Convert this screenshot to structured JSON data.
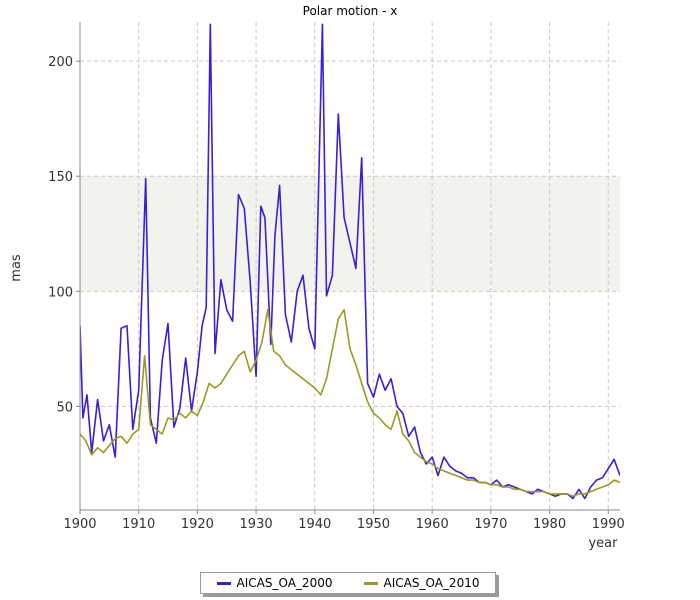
{
  "chart_data": {
    "type": "line",
    "title": "Polar motion - x",
    "xlabel": "year",
    "ylabel": "mas",
    "xlim": [
      1900,
      1992
    ],
    "ylim": [
      5,
      217
    ],
    "x_ticks": [
      1900,
      1910,
      1920,
      1930,
      1940,
      1950,
      1960,
      1970,
      1980,
      1990
    ],
    "y_ticks": [
      50,
      100,
      150,
      200
    ],
    "grid": true,
    "shaded_band": [
      100,
      150
    ],
    "legend_position": "bottom-center",
    "series": [
      {
        "name": "AICAS_OA_2000",
        "color": "#3b1fd6",
        "points": [
          [
            1900,
            85
          ],
          [
            1900.5,
            45
          ],
          [
            1901.2,
            55
          ],
          [
            1902,
            30
          ],
          [
            1903,
            53
          ],
          [
            1904,
            35
          ],
          [
            1905,
            42
          ],
          [
            1906,
            28
          ],
          [
            1907,
            84
          ],
          [
            1908,
            85
          ],
          [
            1909,
            40
          ],
          [
            1910,
            57
          ],
          [
            1911.2,
            149
          ],
          [
            1912,
            45
          ],
          [
            1913,
            34
          ],
          [
            1914,
            70
          ],
          [
            1915,
            86
          ],
          [
            1916,
            41
          ],
          [
            1917,
            49
          ],
          [
            1918,
            71
          ],
          [
            1919,
            48
          ],
          [
            1920,
            65
          ],
          [
            1920.8,
            85
          ],
          [
            1921.5,
            93
          ],
          [
            1922.2,
            216
          ],
          [
            1923,
            73
          ],
          [
            1924,
            105
          ],
          [
            1925,
            92
          ],
          [
            1926,
            87
          ],
          [
            1927,
            142
          ],
          [
            1928,
            136
          ],
          [
            1929,
            104
          ],
          [
            1930,
            63
          ],
          [
            1930.8,
            137
          ],
          [
            1931.5,
            132
          ],
          [
            1932.5,
            77
          ],
          [
            1933.2,
            124
          ],
          [
            1934,
            146
          ],
          [
            1935,
            90
          ],
          [
            1936,
            78
          ],
          [
            1937,
            100
          ],
          [
            1938,
            107
          ],
          [
            1939,
            84
          ],
          [
            1940,
            75
          ],
          [
            1941.3,
            216
          ],
          [
            1942,
            98
          ],
          [
            1943,
            107
          ],
          [
            1944,
            177
          ],
          [
            1945,
            132
          ],
          [
            1946,
            121
          ],
          [
            1947,
            110
          ],
          [
            1948,
            158
          ],
          [
            1949,
            60
          ],
          [
            1950,
            54
          ],
          [
            1951,
            64
          ],
          [
            1952,
            57
          ],
          [
            1953,
            62
          ],
          [
            1954,
            50
          ],
          [
            1955,
            47
          ],
          [
            1956,
            37
          ],
          [
            1957,
            41
          ],
          [
            1958,
            30
          ],
          [
            1959,
            25
          ],
          [
            1960,
            28
          ],
          [
            1961,
            20
          ],
          [
            1962,
            28
          ],
          [
            1963,
            24
          ],
          [
            1964,
            22
          ],
          [
            1965,
            21
          ],
          [
            1966,
            19
          ],
          [
            1967,
            19
          ],
          [
            1968,
            17
          ],
          [
            1969,
            17
          ],
          [
            1970,
            16
          ],
          [
            1971,
            18
          ],
          [
            1972,
            15
          ],
          [
            1973,
            16
          ],
          [
            1974,
            15
          ],
          [
            1975,
            14
          ],
          [
            1976,
            13
          ],
          [
            1977,
            12
          ],
          [
            1978,
            14
          ],
          [
            1979,
            13
          ],
          [
            1980,
            12
          ],
          [
            1981,
            11
          ],
          [
            1982,
            12
          ],
          [
            1983,
            12
          ],
          [
            1984,
            10
          ],
          [
            1985,
            14
          ],
          [
            1986,
            10
          ],
          [
            1987,
            15
          ],
          [
            1988,
            18
          ],
          [
            1989,
            19
          ],
          [
            1990,
            23
          ],
          [
            1991,
            27
          ],
          [
            1992,
            20
          ]
        ]
      },
      {
        "name": "AICAS_OA_2010",
        "color": "#9a9a23",
        "points": [
          [
            1900,
            38
          ],
          [
            1901,
            35
          ],
          [
            1902,
            29
          ],
          [
            1903,
            32
          ],
          [
            1904,
            30
          ],
          [
            1905,
            33
          ],
          [
            1906,
            36
          ],
          [
            1907,
            37
          ],
          [
            1908,
            34
          ],
          [
            1909,
            38
          ],
          [
            1910,
            40
          ],
          [
            1911,
            72
          ],
          [
            1912,
            42
          ],
          [
            1913,
            40
          ],
          [
            1914,
            38
          ],
          [
            1915,
            45
          ],
          [
            1916,
            44
          ],
          [
            1917,
            47
          ],
          [
            1918,
            45
          ],
          [
            1919,
            48
          ],
          [
            1920,
            46
          ],
          [
            1921,
            52
          ],
          [
            1922,
            60
          ],
          [
            1923,
            58
          ],
          [
            1924,
            60
          ],
          [
            1925,
            64
          ],
          [
            1926,
            68
          ],
          [
            1927,
            72
          ],
          [
            1928,
            74
          ],
          [
            1929,
            65
          ],
          [
            1930,
            70
          ],
          [
            1931,
            78
          ],
          [
            1932,
            92
          ],
          [
            1933,
            74
          ],
          [
            1934,
            72
          ],
          [
            1935,
            68
          ],
          [
            1936,
            66
          ],
          [
            1937,
            64
          ],
          [
            1938,
            62
          ],
          [
            1939,
            60
          ],
          [
            1940,
            58
          ],
          [
            1941,
            55
          ],
          [
            1942,
            62
          ],
          [
            1943,
            75
          ],
          [
            1944,
            88
          ],
          [
            1945,
            92
          ],
          [
            1946,
            75
          ],
          [
            1947,
            68
          ],
          [
            1948,
            60
          ],
          [
            1949,
            52
          ],
          [
            1950,
            47
          ],
          [
            1951,
            45
          ],
          [
            1952,
            42
          ],
          [
            1953,
            40
          ],
          [
            1954,
            48
          ],
          [
            1955,
            38
          ],
          [
            1956,
            35
          ],
          [
            1957,
            30
          ],
          [
            1958,
            28
          ],
          [
            1959,
            26
          ],
          [
            1960,
            25
          ],
          [
            1961,
            23
          ],
          [
            1962,
            22
          ],
          [
            1963,
            21
          ],
          [
            1964,
            20
          ],
          [
            1965,
            19
          ],
          [
            1966,
            18
          ],
          [
            1967,
            18
          ],
          [
            1968,
            17
          ],
          [
            1969,
            17
          ],
          [
            1970,
            16
          ],
          [
            1971,
            16
          ],
          [
            1972,
            15
          ],
          [
            1973,
            15
          ],
          [
            1974,
            14
          ],
          [
            1975,
            14
          ],
          [
            1976,
            13
          ],
          [
            1977,
            13
          ],
          [
            1978,
            13
          ],
          [
            1979,
            13
          ],
          [
            1980,
            12
          ],
          [
            1981,
            12
          ],
          [
            1982,
            12
          ],
          [
            1983,
            12
          ],
          [
            1984,
            11
          ],
          [
            1985,
            12
          ],
          [
            1986,
            12
          ],
          [
            1987,
            13
          ],
          [
            1988,
            14
          ],
          [
            1989,
            15
          ],
          [
            1990,
            16
          ],
          [
            1991,
            18
          ],
          [
            1992,
            17
          ]
        ]
      }
    ]
  }
}
